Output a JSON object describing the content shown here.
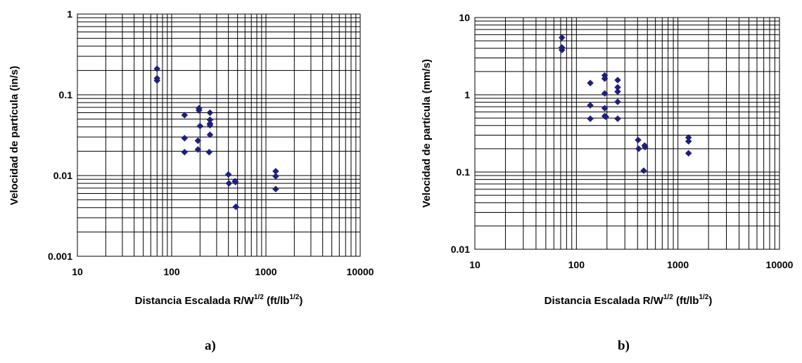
{
  "chart_data": [
    {
      "type": "scatter",
      "panel_label": "a)",
      "xscale": "log",
      "yscale": "log",
      "xlim": [
        10,
        10000
      ],
      "ylim": [
        0.001,
        1
      ],
      "grid": true,
      "x_ticks": [
        "10",
        "100",
        "1000",
        "10000"
      ],
      "y_ticks": [
        "0.001",
        "0.01",
        "0.1",
        "1"
      ],
      "xlabel": {
        "main": "Distancia Escalada R/W",
        "sup1": "1/2",
        "unit_open": " (ft/lb",
        "sup2": "1/2",
        "unit_close": ")"
      },
      "ylabel": "Velocidad de partícula (in/s)",
      "marker_color": "#1f1f7a",
      "series": [
        {
          "x": [
            70,
            70,
            70,
            137,
            137,
            137,
            190,
            190,
            195,
            195,
            200,
            250,
            255,
            255,
            255,
            255,
            255,
            400,
            405,
            470,
            475,
            480,
            1270,
            1270,
            1270
          ],
          "y": [
            0.21,
            0.16,
            0.15,
            0.056,
            0.029,
            0.0195,
            0.027,
            0.021,
            0.068,
            0.064,
            0.041,
            0.0195,
            0.06,
            0.049,
            0.044,
            0.042,
            0.032,
            0.0103,
            0.008,
            0.0085,
            0.0083,
            0.0041,
            0.0113,
            0.0098,
            0.0068
          ]
        }
      ]
    },
    {
      "type": "scatter",
      "panel_label": "b)",
      "xscale": "log",
      "yscale": "log",
      "xlim": [
        10,
        10000
      ],
      "ylim": [
        0.01,
        10
      ],
      "grid": true,
      "x_ticks": [
        "10",
        "100",
        "1000",
        "10000"
      ],
      "y_ticks": [
        "0.01",
        "0.1",
        "1",
        "10"
      ],
      "xlabel": {
        "main": "Distancia Escalada R/W",
        "sup1": "1/2",
        "unit_open": " (ft/lb",
        "sup2": "1/2",
        "unit_close": ")"
      },
      "ylabel": "Velocidad de partícula (mm/s)",
      "marker_color": "#1f1f7a",
      "series": [
        {
          "x": [
            72,
            72,
            72,
            137,
            137,
            137,
            190,
            190,
            190,
            190,
            190,
            195,
            255,
            255,
            255,
            255,
            255,
            405,
            410,
            460,
            470,
            475,
            1270,
            1270,
            1270
          ],
          "y": [
            5.5,
            4.1,
            3.8,
            1.42,
            0.73,
            0.49,
            1.78,
            1.62,
            1.04,
            0.67,
            0.53,
            0.52,
            1.55,
            1.25,
            1.1,
            0.81,
            0.49,
            0.26,
            0.2,
            0.104,
            0.22,
            0.21,
            0.28,
            0.25,
            0.175
          ]
        }
      ]
    }
  ]
}
